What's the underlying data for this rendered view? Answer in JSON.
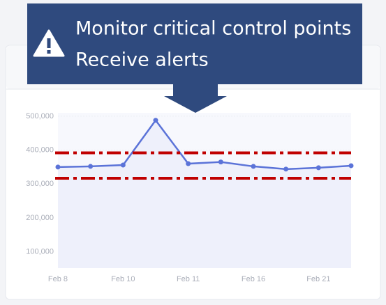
{
  "callout": {
    "lines": [
      "Monitor critical control points",
      "Receive alerts"
    ]
  },
  "chart_data": {
    "type": "line",
    "categories": [
      "Feb 8",
      null,
      "Feb 10",
      null,
      "Feb 11",
      null,
      "Feb 16",
      null,
      "Feb 21",
      null
    ],
    "series": [
      {
        "color": "#5b73d8",
        "values": [
          350000,
          352000,
          356000,
          488000,
          360000,
          365000,
          352000,
          344000,
          348000,
          354000
        ]
      }
    ],
    "thresholds": [
      392000,
      317000
    ],
    "threshold_color": "#c00000",
    "ylim": [
      52000,
      510000
    ],
    "yticks": [
      {
        "value": 100000,
        "label": "100,000"
      },
      {
        "value": 200000,
        "label": "200,000"
      },
      {
        "value": 300000,
        "label": "300,000"
      },
      {
        "value": 400000,
        "label": "400,000"
      },
      {
        "value": 500000,
        "label": "500,000"
      }
    ],
    "grid": true
  }
}
